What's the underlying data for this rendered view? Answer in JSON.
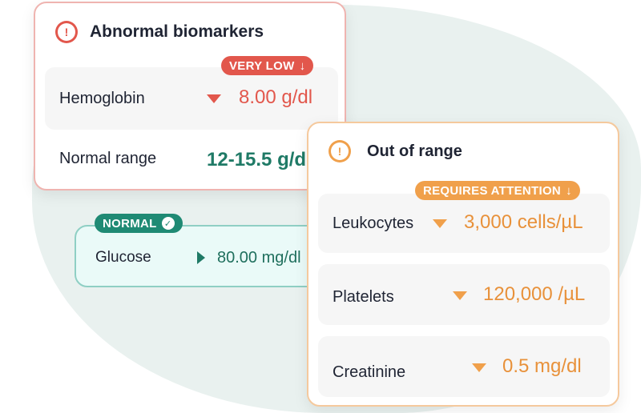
{
  "abnormal": {
    "title": "Abnormal biomarkers",
    "icon": "alert-circle-icon",
    "badge": "VERY LOW",
    "badge_arrow": "↓",
    "row1": {
      "label": "Hemoglobin",
      "value": "8.00 g/dl"
    },
    "row2": {
      "label": "Normal range",
      "value": "12-15.5 g/dl"
    },
    "color": "#e2574c"
  },
  "glucose": {
    "badge": "NORMAL",
    "badge_check": "✓",
    "label": "Glucose",
    "value": "80.00 mg/dl",
    "color": "#1f8a74"
  },
  "out_of_range": {
    "title": "Out of range",
    "icon": "alert-circle-icon",
    "badge": "REQUIRES ATTENTION",
    "badge_arrow": "↓",
    "rows": [
      {
        "label": "Leukocytes",
        "value": "3,000 cells/µL"
      },
      {
        "label": "Platelets",
        "value": "120,000 /µL"
      },
      {
        "label": "Creatinine",
        "value": "0.5 mg/dl"
      }
    ],
    "color": "#f0a04b"
  }
}
